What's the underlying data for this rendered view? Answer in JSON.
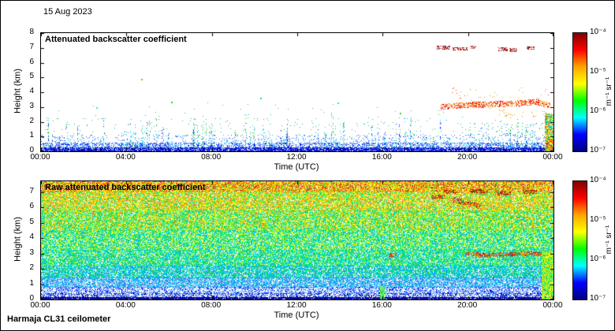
{
  "header": {
    "date": "15 Aug 2023"
  },
  "footer": {
    "instrument": "Harmaja CL31 ceilometer"
  },
  "colorbar": {
    "colormap": "jet",
    "unit_label": "m⁻¹ sr⁻¹",
    "ticks": [
      "10⁻⁴",
      "10⁻⁵",
      "10⁻⁶",
      "10⁻⁷"
    ],
    "scale_max": "1e-4",
    "scale_min": "1e-7",
    "gradient_top_to_bottom": [
      "#7f0000",
      "#ff0000",
      "#ffa500",
      "#ffff00",
      "#00ff00",
      "#00ffff",
      "#0000ff",
      "#00007f"
    ]
  },
  "chart_data": [
    {
      "type": "heatmap",
      "title": "Attenuated backscatter coefficient",
      "xlabel": "Time (UTC)",
      "ylabel": "Height (km)",
      "x_ticks": [
        "00:00",
        "04:00",
        "08:00",
        "12:00",
        "16:00",
        "20:00",
        "00:00"
      ],
      "x_tick_hours": [
        0,
        4,
        8,
        12,
        16,
        20,
        24
      ],
      "x_range_hours": [
        0,
        24
      ],
      "y_ticks": [
        0,
        1,
        2,
        3,
        4,
        5,
        6,
        7,
        8
      ],
      "y_range_km": [
        0,
        8
      ],
      "colorbar_range": [
        "1e-7",
        "1e-4"
      ],
      "background": "#ffffff",
      "features": [
        {
          "label": "boundary-layer-dense",
          "kind": "speckle",
          "t": [
            0,
            24
          ],
          "h": [
            0,
            0.25
          ],
          "density": 0.85,
          "colors": [
            "#00008b",
            "#0000cd",
            "#1e3fbf",
            "#3050ff"
          ],
          "size": 1
        },
        {
          "label": "boundary-layer-mid",
          "kind": "speckle",
          "t": [
            0,
            24
          ],
          "h": [
            0.25,
            0.55
          ],
          "density": 0.4,
          "colors": [
            "#0000ff",
            "#2b5fff",
            "#4169e1",
            "#00bfff"
          ],
          "size": 1
        },
        {
          "label": "boundary-layer-top",
          "kind": "speckle",
          "t": [
            0,
            24
          ],
          "h": [
            0.55,
            1.1
          ],
          "density": 0.09,
          "colors": [
            "#2b5fff",
            "#00bfff",
            "#4169e1"
          ],
          "size": 1
        },
        {
          "label": "sparse-aerosol",
          "kind": "speckle",
          "t": [
            0,
            24
          ],
          "h": [
            1.1,
            2.2
          ],
          "density": 0.014,
          "colors": [
            "#00bfff",
            "#20b2aa",
            "#3cb371",
            "#32cd32"
          ],
          "size": 1
        },
        {
          "label": "very-sparse-aerosol",
          "kind": "speckle",
          "t": [
            0,
            24
          ],
          "h": [
            2.2,
            3.3
          ],
          "density": 0.003,
          "colors": [
            "#32cd32",
            "#00ced1",
            "#3cb371"
          ],
          "size": 1
        },
        {
          "label": "aerosol-plumes",
          "kind": "spikes",
          "t": [
            0,
            24
          ],
          "count": 70,
          "h_base": 0.2,
          "h_top": [
            0.7,
            2.4
          ],
          "density": 0.5,
          "colors": [
            "#0000ff",
            "#00bfff",
            "#32cd32",
            "#20b2aa"
          ]
        },
        {
          "label": "tall-plumes",
          "kind": "spikes",
          "t": [
            1,
            18
          ],
          "count": 12,
          "h_base": 0.3,
          "h_top": [
            2.2,
            3.1
          ],
          "density": 0.35,
          "colors": [
            "#32cd32",
            "#00bfff",
            "#3cb371"
          ]
        },
        {
          "label": "evening-low-scatter",
          "kind": "speckle",
          "t": [
            20.3,
            23.5
          ],
          "h": [
            0.4,
            1.9
          ],
          "density": 0.05,
          "colors": [
            "#00bfff",
            "#32cd32",
            "#2b5fff",
            "#20b2aa"
          ],
          "size": 1
        },
        {
          "label": "cloud-layer-3km",
          "kind": "path",
          "points": [
            [
              18.75,
              3.0
            ],
            [
              19.6,
              3.1
            ],
            [
              20.5,
              3.15
            ],
            [
              21.5,
              3.2
            ],
            [
              22.5,
              3.25
            ],
            [
              23.2,
              3.35
            ],
            [
              23.85,
              3.05
            ]
          ],
          "thickness_km": 0.35,
          "density": 0.5,
          "colors": [
            "#ff4500",
            "#ff0000",
            "#ff8c00",
            "#b22222",
            "#ffa500"
          ],
          "size": 1
        },
        {
          "label": "cloud-scatter-above",
          "kind": "speckle",
          "t": [
            19.2,
            23.9
          ],
          "h": [
            3.45,
            4.3
          ],
          "density": 0.02,
          "colors": [
            "#ff8c00",
            "#ffa500",
            "#ff4500"
          ],
          "size": 1
        },
        {
          "label": "cloud-scatter-below",
          "kind": "speckle",
          "t": [
            21.0,
            23.9
          ],
          "h": [
            2.3,
            2.8
          ],
          "density": 0.04,
          "colors": [
            "#ff8c00",
            "#ffa500"
          ],
          "size": 1
        },
        {
          "label": "high-cloud-7km",
          "kind": "dashes",
          "segments": [
            [
              18.55,
              19.15,
              7.02
            ],
            [
              19.3,
              19.95,
              6.95
            ],
            [
              20.15,
              20.35,
              7.05
            ],
            [
              21.45,
              21.85,
              6.9
            ],
            [
              21.95,
              22.3,
              6.85
            ],
            [
              22.75,
              23.1,
              6.97
            ]
          ],
          "thickness_km": 0.18,
          "density": 0.55,
          "colors": [
            "#8b0000",
            "#a52222",
            "#b22222"
          ]
        },
        {
          "label": "precipitation-column",
          "kind": "speckle",
          "t": [
            23.6,
            24
          ],
          "h": [
            0,
            2.55
          ],
          "density": 0.8,
          "colors": [
            "#32cd32",
            "#ffff00",
            "#ff8c00",
            "#ff3000",
            "#00fa9a",
            "#00bfff",
            "#adff2f"
          ],
          "size": 1
        },
        {
          "label": "precipitation-core",
          "kind": "speckle",
          "t": [
            23.68,
            24
          ],
          "h": [
            0,
            0.9
          ],
          "density": 0.6,
          "colors": [
            "#ff4500",
            "#ff0000",
            "#ff8c00",
            "#ffff00"
          ],
          "size": 1
        },
        {
          "label": "isolated-echoes",
          "kind": "dots",
          "points": [
            [
              4.7,
              4.9,
              "#ff8c00"
            ],
            [
              10.3,
              3.6,
              "#00ced1"
            ],
            [
              6.1,
              3.35,
              "#32cd32"
            ],
            [
              13.9,
              3.3,
              "#00fa9a"
            ],
            [
              2.6,
              2.95,
              "#40e0d0"
            ],
            [
              16.8,
              2.6,
              "#32cd32"
            ]
          ],
          "size": 1
        }
      ]
    },
    {
      "type": "heatmap",
      "title": "Raw attenuated backscatter coefficient",
      "xlabel": "Time (UTC)",
      "ylabel": "Height (km)",
      "x_ticks": [
        "00:00",
        "04:00",
        "08:00",
        "12:00",
        "16:00",
        "20:00",
        "00:00"
      ],
      "x_tick_hours": [
        0,
        4,
        8,
        12,
        16,
        20,
        24
      ],
      "x_range_hours": [
        0,
        24
      ],
      "y_ticks": [
        0,
        1,
        2,
        3,
        4,
        5,
        6,
        7
      ],
      "y_range_km": [
        0,
        7.7
      ],
      "colorbar_range": [
        "1e-7",
        "1e-4"
      ],
      "background": "#ffffff",
      "features": [
        {
          "label": "noise-band-top",
          "kind": "speckle",
          "t": [
            0,
            24
          ],
          "h": [
            7.0,
            7.7
          ],
          "density": 0.9,
          "colors": [
            "#ff8c00",
            "#ffa500",
            "#ffd700",
            "#adff2f",
            "#32cd32",
            "#ff4500",
            "#dc143c",
            "#ffff00"
          ],
          "size": 1
        },
        {
          "label": "noise-band-6km",
          "kind": "speckle",
          "t": [
            0,
            24
          ],
          "h": [
            5.8,
            7.0
          ],
          "density": 0.88,
          "colors": [
            "#ffa500",
            "#ffff00",
            "#adff2f",
            "#32cd32",
            "#00fa9a",
            "#ff7f50",
            "#ffd700"
          ],
          "size": 1
        },
        {
          "label": "noise-band-5km",
          "kind": "speckle",
          "t": [
            0,
            24
          ],
          "h": [
            4.5,
            5.8
          ],
          "density": 0.88,
          "colors": [
            "#adff2f",
            "#ffff00",
            "#32cd32",
            "#00fa9a",
            "#00ced1",
            "#ffa500"
          ],
          "size": 1
        },
        {
          "label": "noise-band-4km",
          "kind": "speckle",
          "t": [
            0,
            24
          ],
          "h": [
            3.2,
            4.5
          ],
          "density": 0.86,
          "colors": [
            "#32cd32",
            "#00fa9a",
            "#adff2f",
            "#00ced1",
            "#ffff00",
            "#00bfff"
          ],
          "size": 1
        },
        {
          "label": "noise-band-3km",
          "kind": "speckle",
          "t": [
            0,
            24
          ],
          "h": [
            2.2,
            3.2
          ],
          "density": 0.85,
          "colors": [
            "#00fa9a",
            "#32cd32",
            "#00ced1",
            "#00bfff",
            "#adff2f"
          ],
          "size": 1
        },
        {
          "label": "noise-band-2km",
          "kind": "speckle",
          "t": [
            0,
            24
          ],
          "h": [
            1.4,
            2.2
          ],
          "density": 0.8,
          "colors": [
            "#00ced1",
            "#00bfff",
            "#32cd32",
            "#1e90ff",
            "#00fa9a"
          ],
          "size": 1
        },
        {
          "label": "noise-band-1km",
          "kind": "speckle",
          "t": [
            0,
            24
          ],
          "h": [
            0.8,
            1.4
          ],
          "density": 0.75,
          "colors": [
            "#00bfff",
            "#1e90ff",
            "#87cefa",
            "#00ced1",
            "#4169e1"
          ],
          "size": 1
        },
        {
          "label": "low-band",
          "kind": "speckle",
          "t": [
            0,
            24
          ],
          "h": [
            0.4,
            0.8
          ],
          "density": 0.5,
          "colors": [
            "#1e90ff",
            "#4169e1",
            "#87cefa",
            "#0000ff"
          ],
          "size": 1
        },
        {
          "label": "near-ground-band",
          "kind": "speckle",
          "t": [
            0,
            24
          ],
          "h": [
            0.15,
            0.4
          ],
          "density": 0.5,
          "colors": [
            "#0000cd",
            "#4169e1",
            "#1e90ff",
            "#00008b"
          ],
          "size": 1
        },
        {
          "label": "ground-band",
          "kind": "speckle",
          "t": [
            0,
            24
          ],
          "h": [
            0,
            0.15
          ],
          "density": 0.92,
          "colors": [
            "#00008b",
            "#191970",
            "#0000cd"
          ],
          "size": 1
        },
        {
          "label": "high-cloud-7km",
          "kind": "dashes",
          "segments": [
            [
              18.9,
              19.5,
              7.0
            ],
            [
              20.15,
              20.9,
              7.05
            ],
            [
              21.3,
              22.0,
              6.9
            ],
            [
              22.6,
              23.2,
              7.0
            ]
          ],
          "thickness_km": 0.2,
          "density": 0.5,
          "colors": [
            "#8b0000",
            "#b22222",
            "#ff4500"
          ]
        },
        {
          "label": "descending-cloud-streak",
          "kind": "path",
          "points": [
            [
              19.3,
              6.5
            ],
            [
              19.9,
              6.3
            ],
            [
              20.6,
              6.0
            ]
          ],
          "thickness_km": 0.3,
          "density": 0.55,
          "colors": [
            "#b22222",
            "#ff4500",
            "#ff8c00",
            "#8b0000"
          ],
          "size": 1
        },
        {
          "label": "cloud-patch-67km",
          "kind": "dashes",
          "segments": [
            [
              18.3,
              18.9,
              6.7
            ]
          ],
          "thickness_km": 0.2,
          "density": 0.45,
          "colors": [
            "#b22222",
            "#ff4500"
          ]
        },
        {
          "label": "cloud-layer-3km",
          "kind": "path",
          "points": [
            [
              19.9,
              2.95
            ],
            [
              21.0,
              2.9
            ],
            [
              22.0,
              2.95
            ],
            [
              23.1,
              3.0
            ],
            [
              23.6,
              2.9
            ]
          ],
          "thickness_km": 0.22,
          "density": 0.55,
          "colors": [
            "#ff4500",
            "#ff8c00",
            "#b22222",
            "#ff0000"
          ],
          "size": 1
        },
        {
          "label": "small-cloud-16utc",
          "kind": "dashes",
          "segments": [
            [
              16.3,
              16.65,
              2.9
            ]
          ],
          "thickness_km": 0.18,
          "density": 0.5,
          "colors": [
            "#ff4500",
            "#b22222"
          ]
        },
        {
          "label": "precipitation-column",
          "kind": "speckle",
          "t": [
            23.45,
            24
          ],
          "h": [
            0,
            3.1
          ],
          "density": 0.95,
          "colors": [
            "#32cd32",
            "#adff2f",
            "#ffff00",
            "#00fa9a",
            "#ffd700"
          ],
          "size": 1
        },
        {
          "label": "green-plume-16utc",
          "kind": "speckle",
          "t": [
            15.9,
            16.08
          ],
          "h": [
            0,
            0.85
          ],
          "density": 0.85,
          "colors": [
            "#32cd32",
            "#00fa9a",
            "#adff2f"
          ],
          "size": 1
        }
      ]
    }
  ]
}
